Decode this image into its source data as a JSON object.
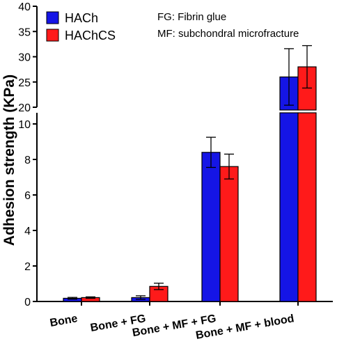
{
  "chart_data": {
    "type": "bar",
    "ylabel": "Adhesion strength (KPa)",
    "categories": [
      "Bone",
      "Bone + FG",
      "Bone + MF + FG",
      "Bone + MF + blood"
    ],
    "series": [
      {
        "name": "HACh",
        "color": "#1515e6",
        "values": [
          0.18,
          0.22,
          8.4,
          26.0
        ],
        "errors": [
          0.05,
          0.1,
          0.85,
          5.6
        ]
      },
      {
        "name": "HAChCS",
        "color": "#ff1a1a",
        "values": [
          0.22,
          0.85,
          7.6,
          28.0
        ],
        "errors": [
          0.04,
          0.18,
          0.7,
          4.2
        ]
      }
    ],
    "y_axis_break": true,
    "y_lower_segment": {
      "range": [
        0,
        10
      ],
      "ticks": [
        "0",
        "2",
        "4",
        "6",
        "8",
        "10"
      ]
    },
    "y_upper_segment": {
      "range": [
        20,
        40
      ],
      "ticks": [
        "20",
        "25",
        "30",
        "35",
        "40"
      ]
    },
    "legend_placement": "top-left",
    "annotations": [
      "FG: Fibrin glue",
      "MF: subchondral microfracture"
    ]
  }
}
